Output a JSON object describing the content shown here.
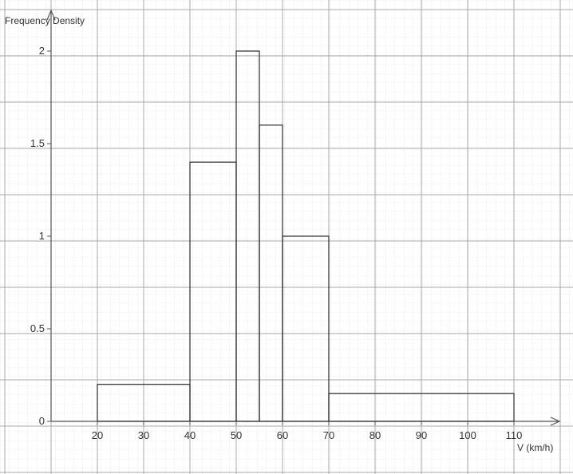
{
  "chart_data": {
    "type": "bar",
    "variant": "histogram",
    "title": "",
    "xlabel": "V (km/h)",
    "ylabel": "Frequency Density",
    "bins": [
      {
        "from": 20,
        "to": 40,
        "value": 0.2
      },
      {
        "from": 40,
        "to": 50,
        "value": 1.4
      },
      {
        "from": 50,
        "to": 55,
        "value": 2.0
      },
      {
        "from": 55,
        "to": 60,
        "value": 1.6
      },
      {
        "from": 60,
        "to": 70,
        "value": 1.0
      },
      {
        "from": 70,
        "to": 110,
        "value": 0.15
      }
    ],
    "x_ticks": [
      20,
      30,
      40,
      50,
      60,
      70,
      80,
      90,
      100,
      110
    ],
    "y_ticks": [
      "0",
      "0.5",
      "1",
      "1.5",
      "2"
    ],
    "y_tick_values": [
      0,
      0.5,
      1,
      1.5,
      2
    ],
    "xlim": [
      10,
      111
    ],
    "ylim": [
      0,
      2.2
    ],
    "grid": true,
    "grid_style": "graph paper (fine and bold lines)",
    "colors": {
      "bars": "#3a3a3a",
      "grid": "#a8a8a8",
      "axes": "#555555"
    }
  }
}
